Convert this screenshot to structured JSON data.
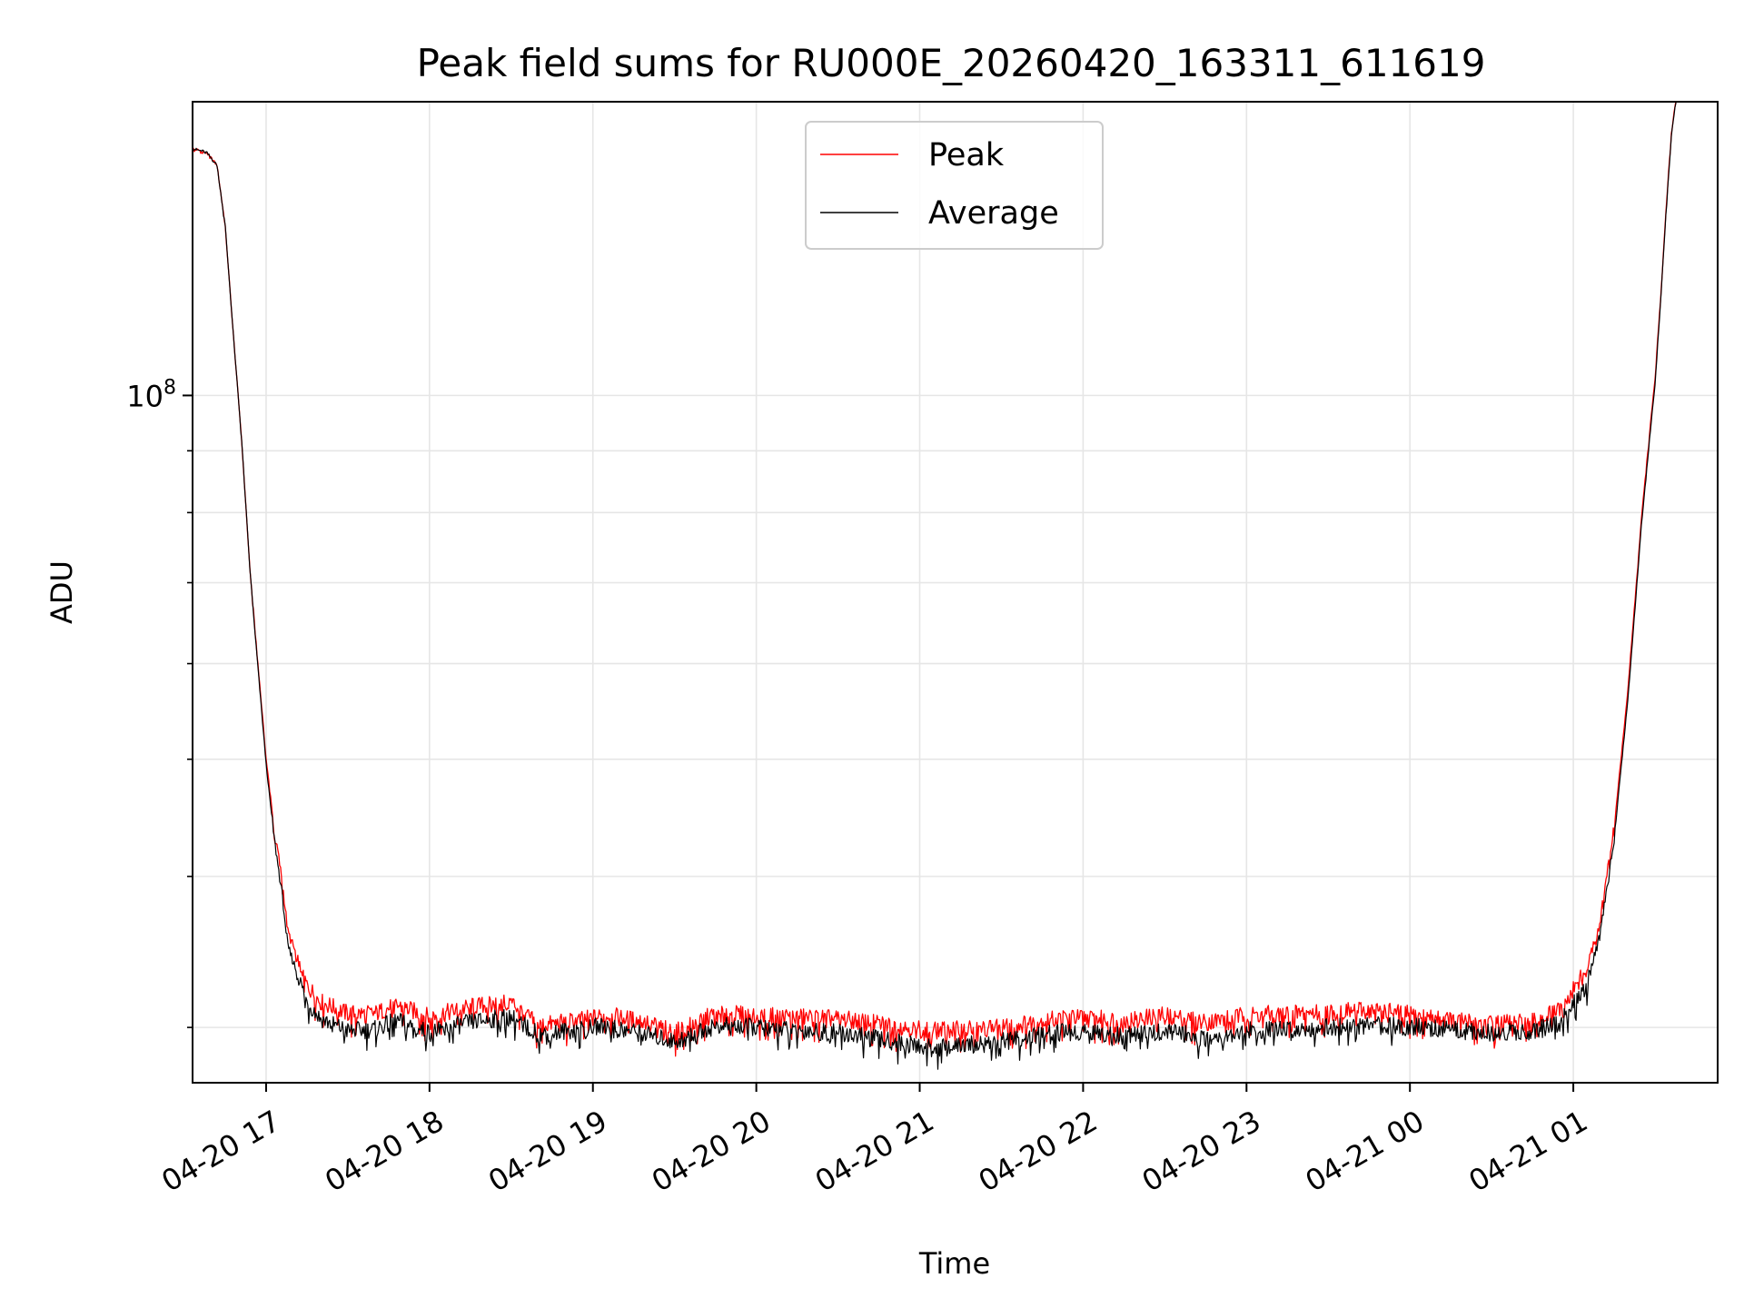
{
  "chart_data": {
    "type": "line",
    "title": "Peak field sums for RU000E_20260420_163311_611619",
    "xlabel": "Time",
    "ylabel": "ADU",
    "yscale": "log",
    "xlim": [
      "2026-04-20 16:33",
      "2026-04-21 01:53"
    ],
    "ylim": [
      27000000,
      175000000
    ],
    "grid": true,
    "legend": "upper center",
    "x_tick_labels": [
      "04-20 17",
      "04-20 18",
      "04-20 19",
      "04-20 20",
      "04-20 21",
      "04-20 22",
      "04-20 23",
      "04-21 00",
      "04-21 01"
    ],
    "y_tick_labels": [
      {
        "value": 100000000,
        "base": "10",
        "exp": "8"
      }
    ],
    "series": [
      {
        "name": "Peak",
        "color": "#ff0000",
        "points": [
          [
            "2026-04-20 16:33",
            160000000
          ],
          [
            "2026-04-20 16:38",
            159000000
          ],
          [
            "2026-04-20 16:42",
            155000000
          ],
          [
            "2026-04-20 16:45",
            138000000
          ],
          [
            "2026-04-20 16:48",
            112000000
          ],
          [
            "2026-04-20 16:51",
            92000000
          ],
          [
            "2026-04-20 16:54",
            72000000
          ],
          [
            "2026-04-20 16:57",
            60000000
          ],
          [
            "2026-04-20 17:00",
            50000000
          ],
          [
            "2026-04-20 17:03",
            44000000
          ],
          [
            "2026-04-20 17:06",
            39500000
          ],
          [
            "2026-04-20 17:08",
            36000000
          ],
          [
            "2026-04-20 17:11",
            34500000
          ],
          [
            "2026-04-20 17:15",
            32500000
          ],
          [
            "2026-04-20 17:20",
            31500000
          ],
          [
            "2026-04-20 17:30",
            30800000
          ],
          [
            "2026-04-20 17:40",
            30800000
          ],
          [
            "2026-04-20 17:48",
            31300000
          ],
          [
            "2026-04-20 18:00",
            30600000
          ],
          [
            "2026-04-20 18:15",
            31200000
          ],
          [
            "2026-04-20 18:30",
            31500000
          ],
          [
            "2026-04-20 18:40",
            30100000
          ],
          [
            "2026-04-20 18:55",
            30400000
          ],
          [
            "2026-04-20 19:05",
            30700000
          ],
          [
            "2026-04-20 19:20",
            30300000
          ],
          [
            "2026-04-20 19:30",
            29700000
          ],
          [
            "2026-04-20 19:45",
            30800000
          ],
          [
            "2026-04-20 20:00",
            30700000
          ],
          [
            "2026-04-20 20:30",
            30500000
          ],
          [
            "2026-04-20 20:50",
            30100000
          ],
          [
            "2026-04-20 21:05",
            29800000
          ],
          [
            "2026-04-20 21:30",
            30000000
          ],
          [
            "2026-04-20 21:55",
            30600000
          ],
          [
            "2026-04-20 22:15",
            30400000
          ],
          [
            "2026-04-20 22:30",
            30700000
          ],
          [
            "2026-04-20 22:45",
            30300000
          ],
          [
            "2026-04-20 23:00",
            30700000
          ],
          [
            "2026-04-20 23:30",
            30900000
          ],
          [
            "2026-04-20 23:50",
            31000000
          ],
          [
            "2026-04-21 00:05",
            30600000
          ],
          [
            "2026-04-21 00:30",
            30200000
          ],
          [
            "2026-04-21 00:45",
            30300000
          ],
          [
            "2026-04-21 00:55",
            31000000
          ],
          [
            "2026-04-21 01:05",
            33500000
          ],
          [
            "2026-04-21 01:10",
            37000000
          ],
          [
            "2026-04-21 01:15",
            44000000
          ],
          [
            "2026-04-21 01:20",
            57000000
          ],
          [
            "2026-04-21 01:25",
            79000000
          ],
          [
            "2026-04-21 01:28",
            93000000
          ],
          [
            "2026-04-21 01:30",
            103000000
          ],
          [
            "2026-04-21 01:32",
            120000000
          ],
          [
            "2026-04-21 01:34",
            142000000
          ],
          [
            "2026-04-21 01:36",
            165000000
          ],
          [
            "2026-04-21 01:38",
            178000000
          ]
        ]
      },
      {
        "name": "Average",
        "color": "#000000",
        "points": [
          [
            "2026-04-20 16:33",
            160000000
          ],
          [
            "2026-04-20 16:38",
            159000000
          ],
          [
            "2026-04-20 16:42",
            155000000
          ],
          [
            "2026-04-20 16:45",
            138000000
          ],
          [
            "2026-04-20 16:48",
            112000000
          ],
          [
            "2026-04-20 16:51",
            92000000
          ],
          [
            "2026-04-20 16:54",
            72000000
          ],
          [
            "2026-04-20 16:57",
            59500000
          ],
          [
            "2026-04-20 17:00",
            49500000
          ],
          [
            "2026-04-20 17:03",
            43000000
          ],
          [
            "2026-04-20 17:06",
            38500000
          ],
          [
            "2026-04-20 17:08",
            35000000
          ],
          [
            "2026-04-20 17:11",
            33500000
          ],
          [
            "2026-04-20 17:15",
            31500000
          ],
          [
            "2026-04-20 17:20",
            30500000
          ],
          [
            "2026-04-20 17:30",
            29800000
          ],
          [
            "2026-04-20 17:40",
            29900000
          ],
          [
            "2026-04-20 17:48",
            30400000
          ],
          [
            "2026-04-20 18:00",
            29700000
          ],
          [
            "2026-04-20 18:15",
            30300000
          ],
          [
            "2026-04-20 18:30",
            30600000
          ],
          [
            "2026-04-20 18:40",
            29600000
          ],
          [
            "2026-04-20 18:55",
            29900000
          ],
          [
            "2026-04-20 19:05",
            30100000
          ],
          [
            "2026-04-20 19:20",
            29600000
          ],
          [
            "2026-04-20 19:30",
            29200000
          ],
          [
            "2026-04-20 19:45",
            30100000
          ],
          [
            "2026-04-20 20:00",
            30000000
          ],
          [
            "2026-04-20 20:30",
            29700000
          ],
          [
            "2026-04-20 20:50",
            29200000
          ],
          [
            "2026-04-20 21:05",
            28800000
          ],
          [
            "2026-04-20 21:30",
            29200000
          ],
          [
            "2026-04-20 21:55",
            29800000
          ],
          [
            "2026-04-20 22:15",
            29500000
          ],
          [
            "2026-04-20 22:30",
            29800000
          ],
          [
            "2026-04-20 22:45",
            29400000
          ],
          [
            "2026-04-20 23:00",
            29800000
          ],
          [
            "2026-04-20 23:30",
            30000000
          ],
          [
            "2026-04-20 23:50",
            30100000
          ],
          [
            "2026-04-21 00:05",
            30000000
          ],
          [
            "2026-04-21 00:30",
            29700000
          ],
          [
            "2026-04-21 00:45",
            29800000
          ],
          [
            "2026-04-21 00:55",
            30200000
          ],
          [
            "2026-04-21 01:05",
            32500000
          ],
          [
            "2026-04-21 01:10",
            36000000
          ],
          [
            "2026-04-21 01:15",
            43000000
          ],
          [
            "2026-04-21 01:20",
            56000000
          ],
          [
            "2026-04-21 01:25",
            78000000
          ],
          [
            "2026-04-21 01:28",
            92000000
          ],
          [
            "2026-04-21 01:30",
            102000000
          ],
          [
            "2026-04-21 01:32",
            119000000
          ],
          [
            "2026-04-21 01:34",
            141000000
          ],
          [
            "2026-04-21 01:36",
            164000000
          ],
          [
            "2026-04-21 01:38",
            178000000
          ]
        ]
      }
    ]
  }
}
